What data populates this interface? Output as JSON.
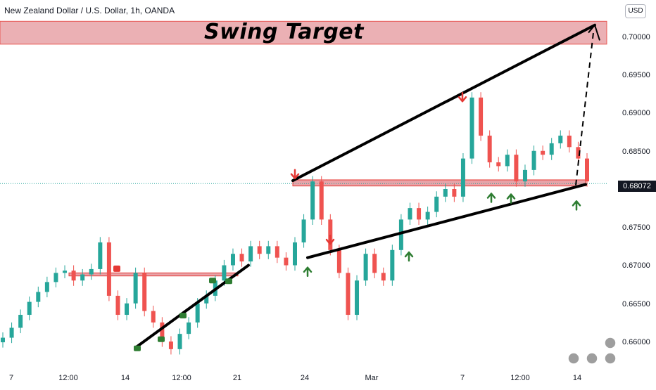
{
  "header": {
    "symbol_title": "New Zealand Dollar / U.S. Dollar, 1h, OANDA",
    "currency_button": "USD",
    "current_price_label": "0.68072"
  },
  "annotations": {
    "swing_target_label": "Swing Target"
  },
  "colors": {
    "up_candle": "#26a69a",
    "down_candle": "#ef5350",
    "zone_fill": "#e8a3a8",
    "zone_border": "#e53935",
    "up_arrow": "#2e7d32",
    "down_arrow": "#e53935",
    "trend_lines": "#000000"
  },
  "chart_data": {
    "type": "line",
    "title": "New Zealand Dollar / U.S. Dollar, 1h, OANDA",
    "xlabel": "",
    "ylabel": "",
    "x_tick_labels": [
      "7",
      "12:00",
      "14",
      "12:00",
      "21",
      "24",
      "Mar",
      "7",
      "12:00",
      "14"
    ],
    "y_tick_labels": [
      "0.70000",
      "0.69500",
      "0.69000",
      "0.68500",
      "0.68000",
      "0.67500",
      "0.67000",
      "0.66500",
      "0.66000"
    ],
    "ylim": [
      0.6575,
      0.7025
    ],
    "grid": false,
    "legend": "none",
    "current_price": 0.68072,
    "series": [
      {
        "values": [
          0.6605,
          0.6618,
          0.6635,
          0.6652,
          0.6665,
          0.6678,
          0.669,
          0.6693,
          0.668,
          0.6688,
          0.6695,
          0.673,
          0.666,
          0.6635,
          0.665,
          0.669,
          0.664,
          0.6625,
          0.66,
          0.659,
          0.661,
          0.6625,
          0.665,
          0.666,
          0.668,
          0.67,
          0.6715,
          0.6705,
          0.6725,
          0.6715,
          0.6725,
          0.671,
          0.67,
          0.673,
          0.676,
          0.681,
          0.676,
          0.672,
          0.669,
          0.6635,
          0.668,
          0.6715,
          0.669,
          0.668,
          0.672,
          0.676,
          0.6775,
          0.676,
          0.677,
          0.679,
          0.68,
          0.679,
          0.684,
          0.692,
          0.687,
          0.6835,
          0.683,
          0.6845,
          0.681,
          0.6825,
          0.685,
          0.6845,
          0.686,
          0.687,
          0.6855,
          0.684,
          0.681
        ]
      }
    ]
  }
}
